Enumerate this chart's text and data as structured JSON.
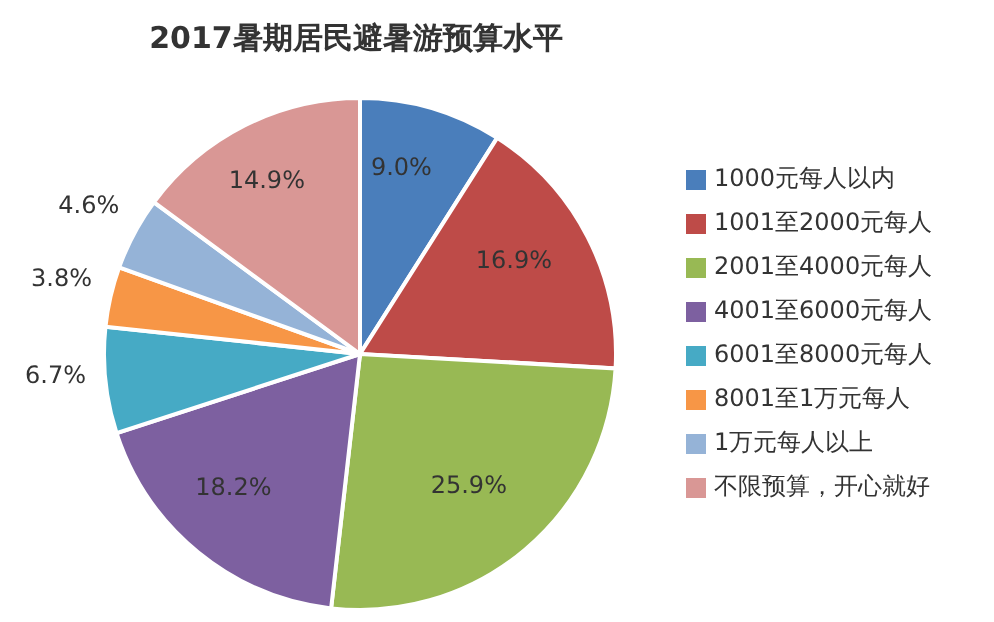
{
  "chart_data": {
    "type": "pie",
    "title": "2017暑期居民避暑游预算水平",
    "categories": [
      "1000元每人以内",
      "1001至2000元每人",
      "2001至4000元每人",
      "4001至6000元每人",
      "6001至8000元每人",
      "8001至1万元每人",
      "1万元每人以上",
      "不限预算，开心就好"
    ],
    "values": [
      9.0,
      16.9,
      25.9,
      18.2,
      6.7,
      3.8,
      4.6,
      14.9
    ],
    "value_labels": [
      "9.0%",
      "16.9%",
      "25.9%",
      "18.2%",
      "6.7%",
      "3.8%",
      "4.6%",
      "14.9%"
    ],
    "colors": [
      "#4a7ebb",
      "#be4b48",
      "#98b954",
      "#7d60a0",
      "#46aac5",
      "#f79646",
      "#95b3d7",
      "#d99795"
    ],
    "legend": "right"
  }
}
